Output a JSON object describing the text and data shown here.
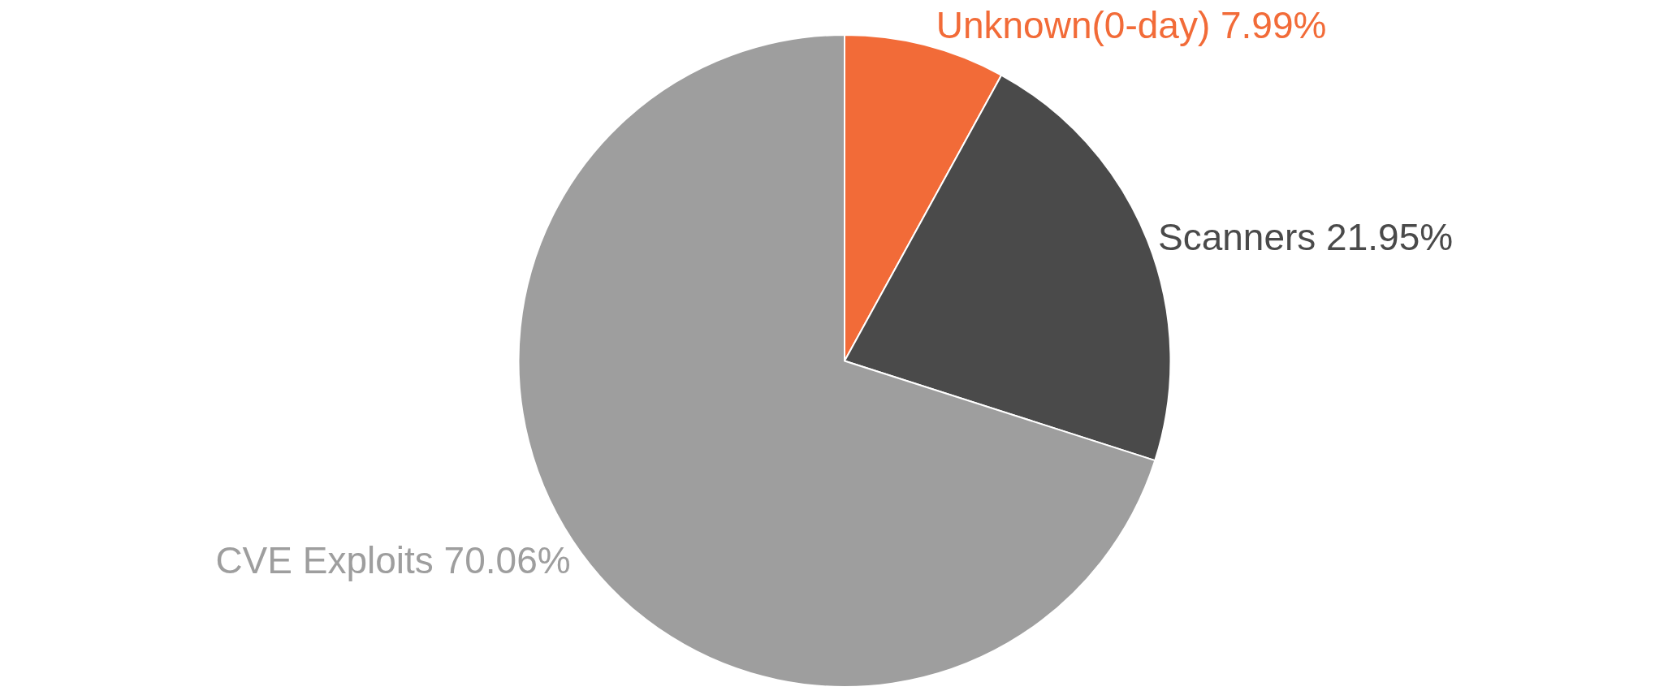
{
  "chart_data": {
    "type": "pie",
    "categories": [
      "Unknown(0-day)",
      "Scanners",
      "CVE Exploits"
    ],
    "values": [
      7.99,
      21.95,
      70.06
    ],
    "value_labels": [
      "7.99%",
      "21.95%",
      "70.06%"
    ],
    "colors": [
      "#f26b38",
      "#4a4a4a",
      "#9e9e9e"
    ],
    "legend": false
  }
}
